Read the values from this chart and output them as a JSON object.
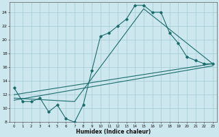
{
  "xlabel": "Humidex (Indice chaleur)",
  "bg_color": "#cce8ee",
  "grid_color": "#aacfd8",
  "line_color": "#1a6b6b",
  "xlim": [
    -0.5,
    23.5
  ],
  "ylim": [
    8,
    25.5
  ],
  "xticks": [
    0,
    1,
    2,
    3,
    4,
    5,
    6,
    7,
    8,
    9,
    10,
    11,
    12,
    13,
    14,
    15,
    16,
    17,
    18,
    19,
    20,
    21,
    22,
    23
  ],
  "yticks": [
    8,
    10,
    12,
    14,
    16,
    18,
    20,
    22,
    24
  ],
  "series1_x": [
    0,
    1,
    2,
    3,
    4,
    5,
    6,
    7,
    8,
    9,
    10,
    11,
    12,
    13,
    14,
    15,
    16,
    17,
    18,
    19,
    20,
    21,
    22,
    23
  ],
  "series1_y": [
    13,
    11,
    11,
    11.5,
    9.5,
    10.5,
    8.5,
    8,
    10.5,
    15.5,
    20.5,
    21,
    22,
    23,
    25,
    25,
    24,
    24,
    21,
    19.5,
    17.5,
    17,
    16.5,
    16.5
  ],
  "line2_x": [
    0,
    23
  ],
  "line2_y": [
    11.2,
    16.2
  ],
  "line3_x": [
    0,
    7,
    15,
    23
  ],
  "line3_y": [
    11.5,
    11.0,
    24.5,
    16.5
  ],
  "line4_x": [
    0,
    23
  ],
  "line4_y": [
    12.0,
    16.5
  ]
}
